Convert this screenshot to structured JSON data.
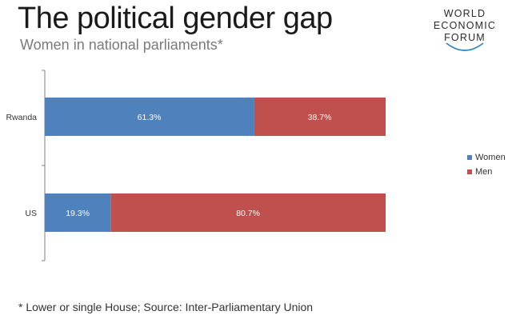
{
  "header": {
    "title": "The political gender gap",
    "subtitle": "Women in national parliaments*"
  },
  "logo": {
    "lines": [
      "WORLD",
      "ECONOMIC",
      "FORUM"
    ]
  },
  "chart_data": {
    "type": "bar",
    "orientation": "horizontal",
    "stacked": true,
    "categories": [
      "Rwanda",
      "US"
    ],
    "series": [
      {
        "name": "Women",
        "values": [
          61.3,
          19.3
        ],
        "labels": [
          "61.3%",
          "19.3%"
        ],
        "color": "#4f81bd"
      },
      {
        "name": "Men",
        "values": [
          38.7,
          80.7
        ],
        "labels": [
          "38.7%",
          "80.7%"
        ],
        "color": "#c0504d"
      }
    ],
    "xlim": [
      0,
      100
    ],
    "grid": false,
    "legend": "right"
  },
  "footnote": "* Lower or single House; Source: Inter-Parliamentary Union"
}
